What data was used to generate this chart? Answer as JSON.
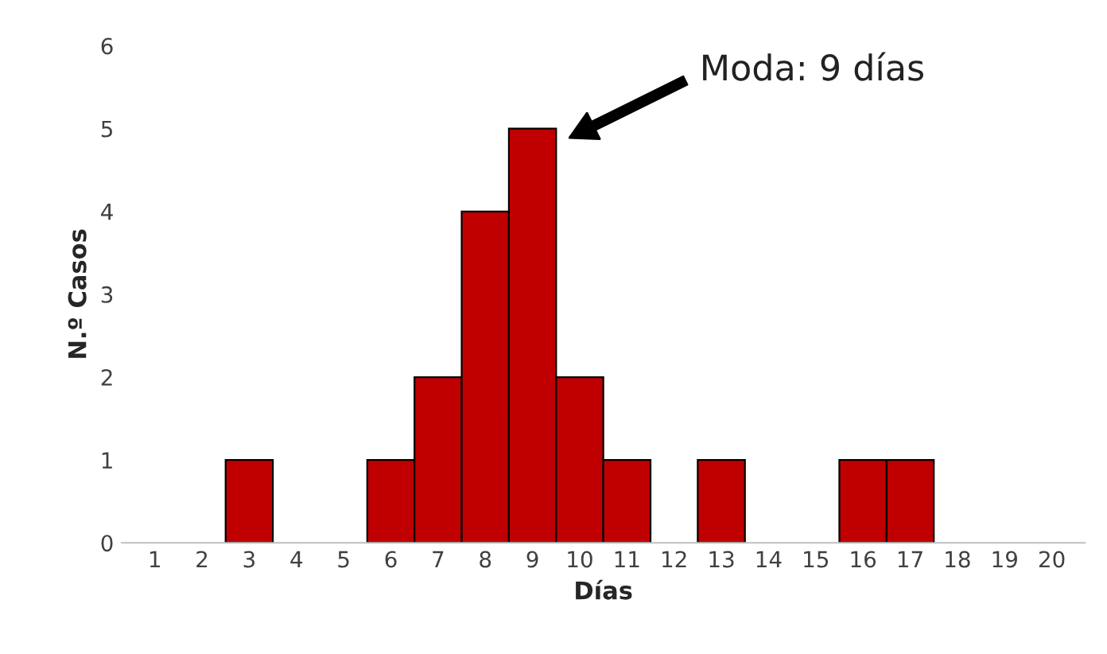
{
  "chart_data": {
    "type": "bar",
    "categories": [
      "1",
      "2",
      "3",
      "4",
      "5",
      "6",
      "7",
      "8",
      "9",
      "10",
      "11",
      "12",
      "13",
      "14",
      "15",
      "16",
      "17",
      "18",
      "19",
      "20"
    ],
    "values": [
      0,
      0,
      1,
      0,
      0,
      1,
      2,
      4,
      5,
      2,
      1,
      0,
      1,
      0,
      0,
      1,
      1,
      0,
      0,
      0
    ],
    "color": "#c00000",
    "xlabel": "Días",
    "ylabel": "N.º Casos",
    "ylim": [
      0,
      6
    ],
    "yticks": [
      0,
      1,
      2,
      3,
      4,
      5,
      6
    ],
    "grid": false,
    "legend": false,
    "annotations": [
      "Moda: 9 días"
    ]
  }
}
